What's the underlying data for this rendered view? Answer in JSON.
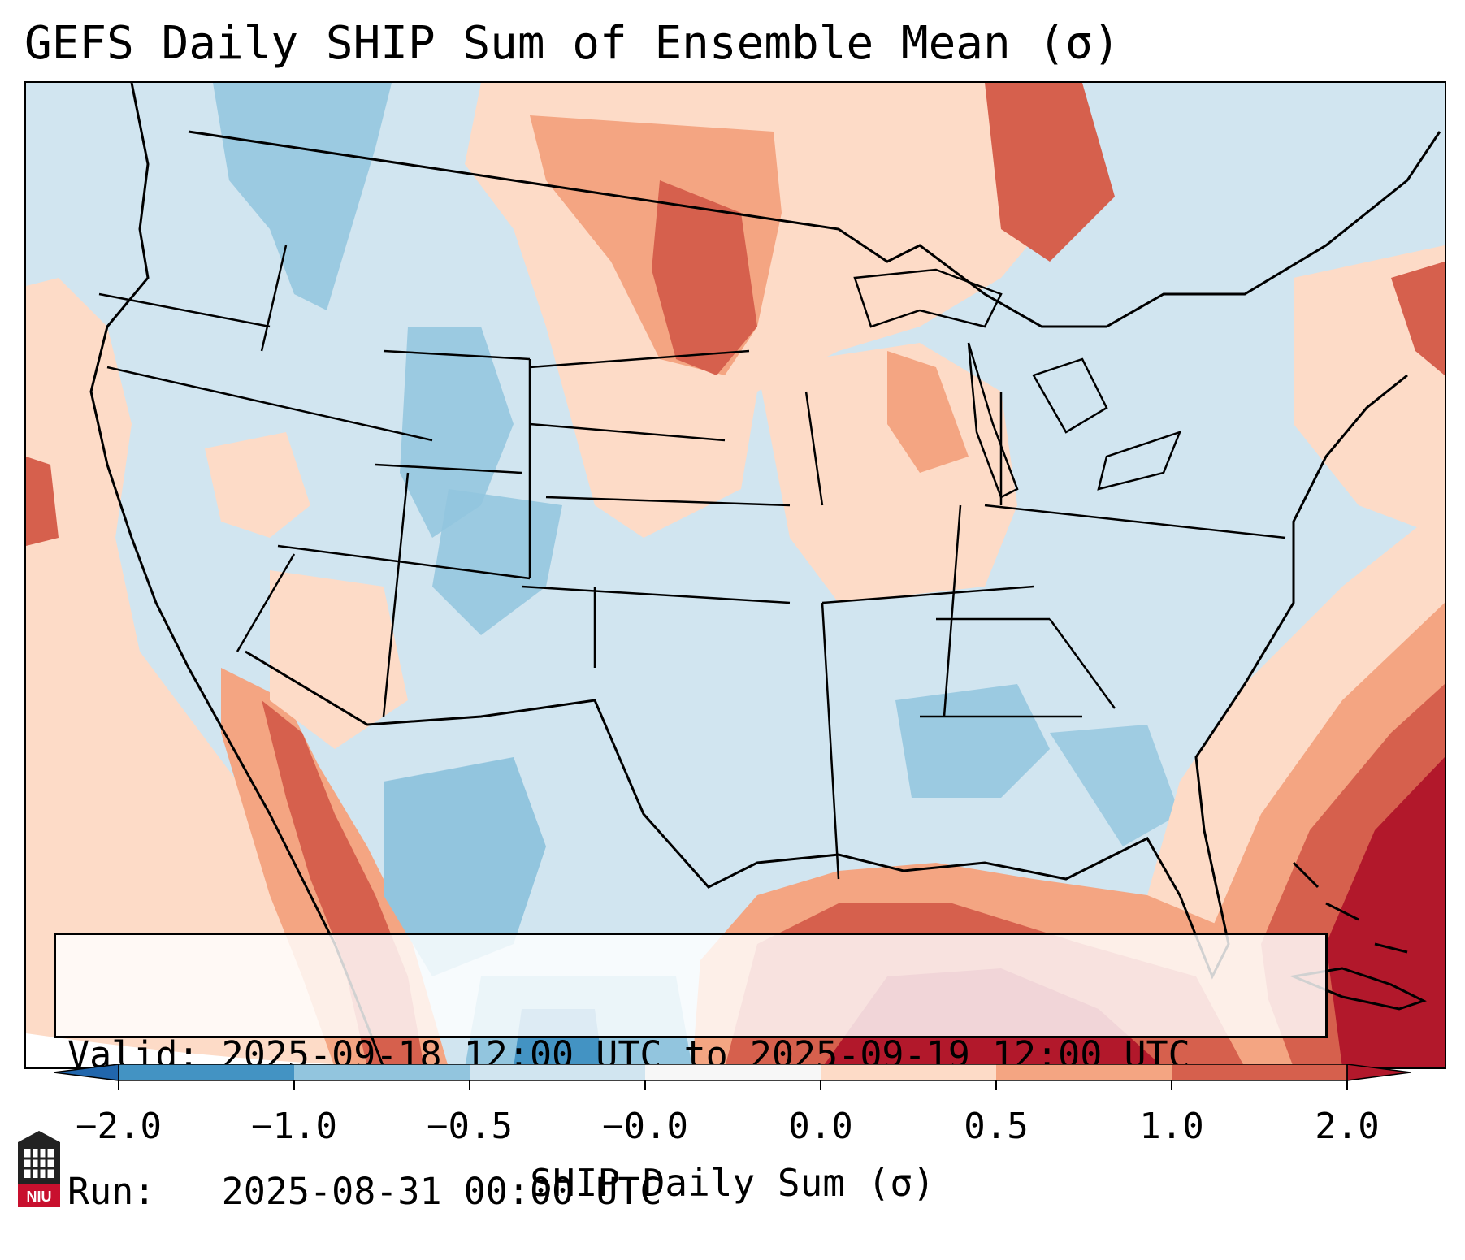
{
  "title": "GEFS Daily SHIP Sum of Ensemble Mean (σ)",
  "info": {
    "valid_label": "Valid:",
    "valid_value": "2025-09-18 12:00 UTC to 2025-09-19 12:00 UTC",
    "run_label": "Run:",
    "run_value": "2025-08-31 00:00 UTC"
  },
  "colorbar": {
    "label": "SHIP Daily Sum (σ)",
    "ticks": [
      "−2.0",
      "−1.0",
      "−0.5",
      "−0.0",
      "0.0",
      "0.5",
      "1.0",
      "2.0"
    ],
    "colors": {
      "under": "#2166ac",
      "b_-2_-1": "#4393c3",
      "b_-1_-0.5": "#92c5de",
      "b_-0.5_0": "#d1e5f0",
      "b_0_zero": "#f7f7f7",
      "b_0_0.5": "#fddbc7",
      "b_0.5_1": "#f4a582",
      "b_1_2": "#d6604d",
      "over": "#b2182b"
    }
  },
  "logo": {
    "text": "NIU",
    "icon": "niu-logo-icon"
  }
}
